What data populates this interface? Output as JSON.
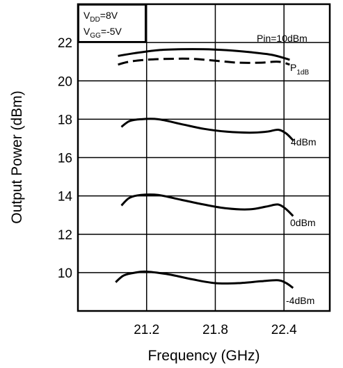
{
  "chart_data": {
    "type": "line",
    "title": "",
    "xlabel": "Frequency (GHz)",
    "ylabel": "Output Power (dBm)",
    "xlim": [
      20.6,
      22.8
    ],
    "ylim": [
      8.0,
      24.0
    ],
    "xticks": [
      "21.2",
      "21.8",
      "22.4"
    ],
    "yticks": [
      "10",
      "12",
      "14",
      "16",
      "18",
      "20",
      "22"
    ],
    "grid": true,
    "conditions": {
      "vdd_main": "V",
      "vdd_sub": "DD",
      "vdd_rest": "=8V",
      "vgg_main": "V",
      "vgg_sub": "GG",
      "vgg_rest": "=-5V"
    },
    "series": [
      {
        "name": "Pin=10dBm",
        "style": "solid",
        "x": [
          20.95,
          21.1,
          21.3,
          21.5,
          21.7,
          21.9,
          22.1,
          22.3,
          22.45
        ],
        "y": [
          21.3,
          21.45,
          21.6,
          21.65,
          21.65,
          21.6,
          21.5,
          21.35,
          21.1
        ]
      },
      {
        "name": "P",
        "name_sub": "1dB",
        "style": "dashed",
        "x": [
          20.95,
          21.05,
          21.2,
          21.4,
          21.6,
          21.8,
          22.0,
          22.2,
          22.35,
          22.45
        ],
        "y": [
          20.85,
          21.0,
          21.1,
          21.15,
          21.15,
          21.05,
          20.95,
          20.95,
          21.0,
          20.85
        ]
      },
      {
        "name": "4dBm",
        "style": "solid",
        "x": [
          20.98,
          21.05,
          21.15,
          21.3,
          21.5,
          21.7,
          21.9,
          22.1,
          22.25,
          22.35,
          22.42,
          22.48
        ],
        "y": [
          17.6,
          17.9,
          18.0,
          18.0,
          17.75,
          17.5,
          17.35,
          17.3,
          17.35,
          17.45,
          17.25,
          16.9
        ]
      },
      {
        "name": "0dBm",
        "style": "solid",
        "x": [
          20.98,
          21.05,
          21.15,
          21.3,
          21.5,
          21.7,
          21.9,
          22.1,
          22.25,
          22.35,
          22.42,
          22.48
        ],
        "y": [
          13.5,
          13.9,
          14.05,
          14.05,
          13.8,
          13.55,
          13.35,
          13.3,
          13.45,
          13.55,
          13.3,
          12.95
        ]
      },
      {
        "name": "-4dBm",
        "style": "solid",
        "x": [
          20.93,
          21.0,
          21.1,
          21.2,
          21.4,
          21.6,
          21.8,
          22.0,
          22.2,
          22.35,
          22.42,
          22.48
        ],
        "y": [
          9.5,
          9.85,
          10.0,
          10.05,
          9.9,
          9.65,
          9.45,
          9.45,
          9.55,
          9.6,
          9.45,
          9.2
        ]
      }
    ]
  }
}
